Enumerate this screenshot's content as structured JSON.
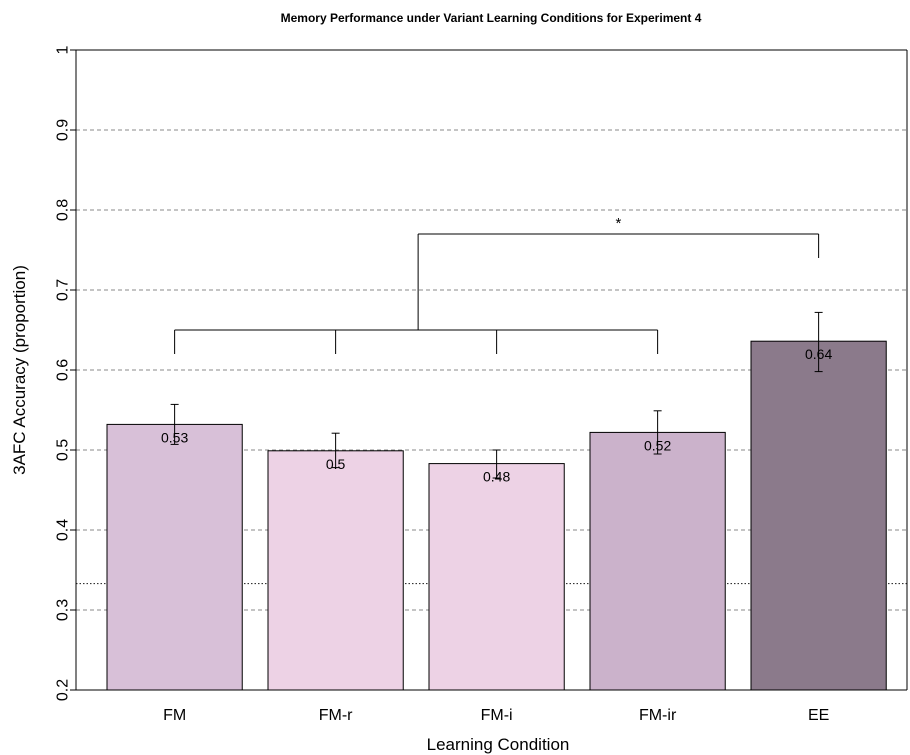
{
  "chart_data": {
    "type": "bar",
    "title": "Memory Performance under Variant Learning Conditions for Experiment 4",
    "xlabel": "Learning Condition",
    "ylabel": "3AFC Accuracy (proportion)",
    "ylim": [
      0.2,
      1.0
    ],
    "yticks": [
      0.2,
      0.3,
      0.4,
      0.5,
      0.6,
      0.7,
      0.8,
      0.9,
      1.0
    ],
    "ytick_labels": [
      "0.2",
      "0.3",
      "0.4",
      "0.5",
      "0.6",
      "0.7",
      "0.8",
      "0.9",
      "1"
    ],
    "grid": true,
    "grid_style": "dashed",
    "chance_line": 0.333,
    "categories": [
      "FM",
      "FM-r",
      "FM-i",
      "FM-ir",
      "EE"
    ],
    "values": [
      0.532,
      0.499,
      0.483,
      0.522,
      0.636
    ],
    "error_upper": [
      0.557,
      0.521,
      0.5,
      0.549,
      0.672
    ],
    "error_lower": [
      0.507,
      0.478,
      0.465,
      0.495,
      0.598
    ],
    "data_labels": [
      "0.53",
      "0.5",
      "0.48",
      "0.52",
      "0.64"
    ],
    "bar_colors": [
      "#d8c0d8",
      "#edd2e5",
      "#edd2e5",
      "#cbb2cb",
      "#8b7a8b"
    ],
    "significance": {
      "group_bracket_y": 0.65,
      "group_leg_bottom": 0.62,
      "top_bracket_y": 0.77,
      "ee_leg_bottom": 0.74,
      "label": "*"
    }
  }
}
